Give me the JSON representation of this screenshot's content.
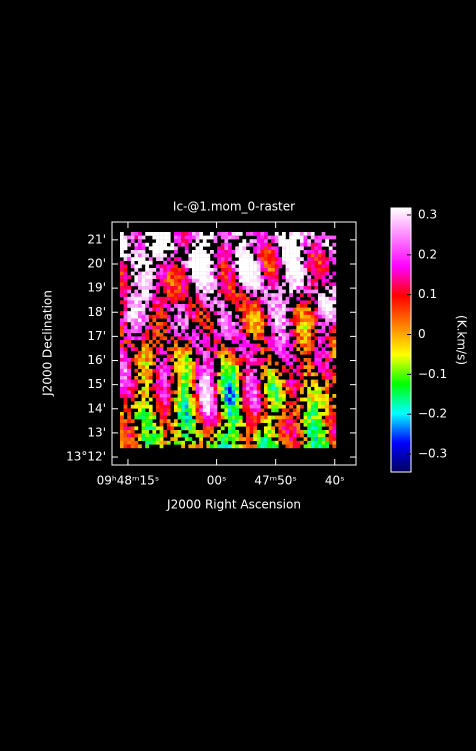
{
  "chart_data": {
    "type": "raster",
    "title": "Ic-@1.mom_0-raster",
    "x_label": "J2000 Right Ascension",
    "y_label": "J2000 Declination",
    "colorbar_label": "(K.km/s)",
    "background": "#000000",
    "text_color": "#ffffff",
    "xlim": [
      77.7,
      36.4
    ],
    "xticks": [
      {
        "value": 75,
        "label": "09ʰ48ᵐ15ˢ"
      },
      {
        "value": 60,
        "label": "00ˢ"
      },
      {
        "value": 50,
        "label": "47ᵐ50ˢ"
      },
      {
        "value": 40,
        "label": "40ˢ"
      }
    ],
    "ylim": [
      11.67,
      21.74
    ],
    "yticks": [
      {
        "value": 12,
        "label": "13°12'"
      },
      {
        "value": 13,
        "label": "13'"
      },
      {
        "value": 14,
        "label": "14'"
      },
      {
        "value": 15,
        "label": "15'"
      },
      {
        "value": 16,
        "label": "16'"
      },
      {
        "value": 17,
        "label": "17'"
      },
      {
        "value": 18,
        "label": "18'"
      },
      {
        "value": 19,
        "label": "19'"
      },
      {
        "value": 20,
        "label": "20'"
      },
      {
        "value": 21,
        "label": "21'"
      }
    ],
    "colorbar_lim": [
      -0.345,
      0.3175
    ],
    "colorbar_ticks": [
      {
        "value": -0.3,
        "label": "−0.3"
      },
      {
        "value": -0.2,
        "label": "−0.2"
      },
      {
        "value": -0.1,
        "label": "−0.1"
      },
      0,
      0.1,
      0.2,
      0.3
    ],
    "colormap": [
      "#000060",
      "#0000ff",
      "#00ffff",
      "#00ff00",
      "#ffff00",
      "#ff8000",
      "#ff0000",
      "#ff00ff",
      "#ff80ff",
      "#ffffff"
    ]
  }
}
